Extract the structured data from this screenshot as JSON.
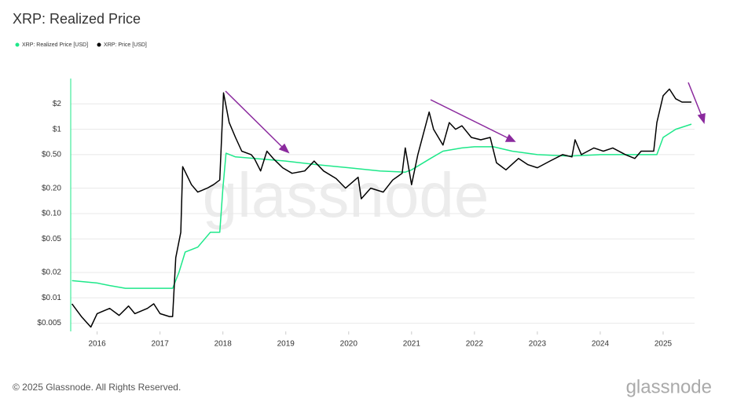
{
  "chart_data": {
    "type": "line",
    "title": "XRP: Realized Price",
    "watermark": "glassnode",
    "footer": "© 2025 Glassnode. All Rights Reserved.",
    "logo": "glassnode",
    "log_scale": true,
    "grid": true,
    "legend": "top-left",
    "xlim": [
      2015.58,
      2025.5
    ],
    "xticks": [
      2016,
      2017,
      2018,
      2019,
      2020,
      2021,
      2022,
      2023,
      2024,
      2025
    ],
    "ylim": [
      0.004,
      4
    ],
    "yticks": [
      {
        "value": 0.005,
        "label": "$0.005"
      },
      {
        "value": 0.01,
        "label": "$0.01"
      },
      {
        "value": 0.02,
        "label": "$0.02"
      },
      {
        "value": 0.05,
        "label": "$0.05"
      },
      {
        "value": 0.1,
        "label": "$0.10"
      },
      {
        "value": 0.2,
        "label": "$0.20"
      },
      {
        "value": 0.5,
        "label": "$0.50"
      },
      {
        "value": 1,
        "label": "$1"
      },
      {
        "value": 2,
        "label": "$2"
      }
    ],
    "series": [
      {
        "name": "XRP: Realized Price [USD]",
        "color": "#1ee88a",
        "x": [
          2015.6,
          2016.0,
          2016.2,
          2016.45,
          2017.0,
          2017.2,
          2017.3,
          2017.4,
          2017.6,
          2017.8,
          2017.95,
          2018.0,
          2018.05,
          2018.2,
          2018.5,
          2019.0,
          2019.5,
          2020.0,
          2020.5,
          2020.9,
          2021.0,
          2021.3,
          2021.5,
          2021.8,
          2022.0,
          2022.3,
          2022.6,
          2023.0,
          2023.5,
          2024.0,
          2024.5,
          2024.9,
          2025.0,
          2025.2,
          2025.45
        ],
        "values": [
          0.016,
          0.015,
          0.014,
          0.013,
          0.013,
          0.013,
          0.02,
          0.035,
          0.04,
          0.06,
          0.06,
          0.2,
          0.52,
          0.47,
          0.45,
          0.42,
          0.38,
          0.35,
          0.32,
          0.31,
          0.33,
          0.45,
          0.55,
          0.6,
          0.62,
          0.62,
          0.55,
          0.5,
          0.48,
          0.5,
          0.5,
          0.5,
          0.8,
          1.0,
          1.15
        ]
      },
      {
        "name": "XRP: Price [USD]",
        "color": "#000000",
        "x": [
          2015.6,
          2015.75,
          2015.9,
          2016.0,
          2016.2,
          2016.35,
          2016.5,
          2016.6,
          2016.8,
          2016.9,
          2017.0,
          2017.15,
          2017.2,
          2017.25,
          2017.33,
          2017.36,
          2017.5,
          2017.6,
          2017.75,
          2017.85,
          2017.95,
          2018.01,
          2018.1,
          2018.2,
          2018.3,
          2018.45,
          2018.5,
          2018.6,
          2018.7,
          2018.8,
          2018.95,
          2019.1,
          2019.3,
          2019.45,
          2019.6,
          2019.8,
          2019.95,
          2020.15,
          2020.2,
          2020.35,
          2020.55,
          2020.7,
          2020.85,
          2020.9,
          2021.0,
          2021.1,
          2021.28,
          2021.35,
          2021.5,
          2021.6,
          2021.7,
          2021.8,
          2021.95,
          2022.1,
          2022.25,
          2022.35,
          2022.5,
          2022.7,
          2022.85,
          2023.0,
          2023.2,
          2023.4,
          2023.55,
          2023.6,
          2023.7,
          2023.9,
          2024.05,
          2024.2,
          2024.4,
          2024.55,
          2024.65,
          2024.85,
          2024.9,
          2025.0,
          2025.1,
          2025.2,
          2025.3,
          2025.45
        ],
        "values": [
          0.0085,
          0.006,
          0.0045,
          0.0065,
          0.0075,
          0.0062,
          0.008,
          0.0065,
          0.0075,
          0.0085,
          0.0065,
          0.006,
          0.006,
          0.03,
          0.06,
          0.36,
          0.22,
          0.18,
          0.2,
          0.22,
          0.25,
          2.7,
          1.2,
          0.8,
          0.55,
          0.5,
          0.45,
          0.32,
          0.55,
          0.45,
          0.35,
          0.3,
          0.32,
          0.42,
          0.32,
          0.26,
          0.2,
          0.27,
          0.15,
          0.2,
          0.18,
          0.25,
          0.3,
          0.6,
          0.22,
          0.5,
          1.6,
          1.0,
          0.65,
          1.2,
          1.0,
          1.1,
          0.8,
          0.75,
          0.8,
          0.4,
          0.33,
          0.45,
          0.38,
          0.35,
          0.42,
          0.5,
          0.47,
          0.75,
          0.5,
          0.6,
          0.55,
          0.6,
          0.5,
          0.45,
          0.55,
          0.55,
          1.2,
          2.5,
          3.0,
          2.3,
          2.1,
          2.1
        ]
      }
    ]
  }
}
